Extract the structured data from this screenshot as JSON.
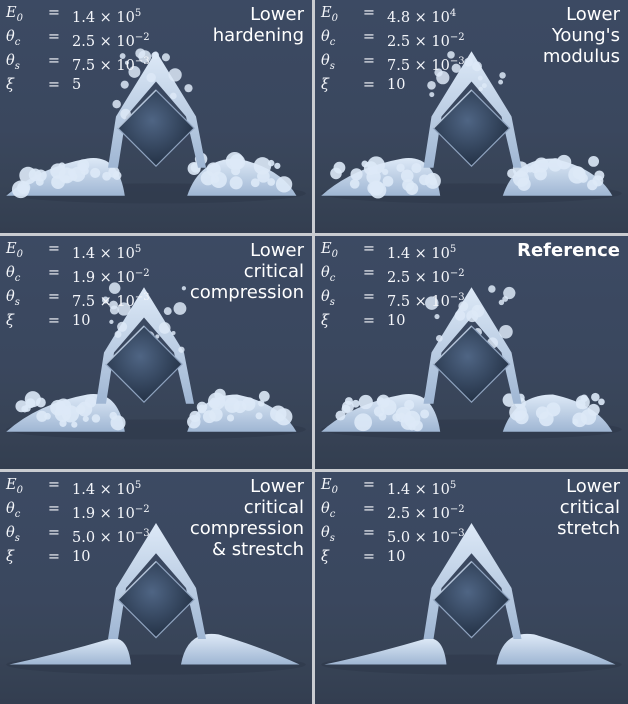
{
  "panels": [
    {
      "title": "Lower hardening",
      "title_lines": [
        "Lower",
        "hardening"
      ],
      "bold_title": false,
      "params": [
        {
          "symbol": "E",
          "sub": "0",
          "value": "1.4 × 10",
          "exp": "5"
        },
        {
          "symbol": "θ",
          "sub": "c",
          "value": "2.5 × 10",
          "exp": "−2"
        },
        {
          "symbol": "θ",
          "sub": "s",
          "value": "7.5 × 10",
          "exp": "−3"
        },
        {
          "symbol": "ξ",
          "sub": "",
          "value": "5",
          "exp": ""
        }
      ]
    },
    {
      "title": "Lower Young's modulus",
      "title_lines": [
        "Lower",
        "Young's",
        "modulus"
      ],
      "bold_title": false,
      "params": [
        {
          "symbol": "E",
          "sub": "0",
          "value": "4.8 × 10",
          "exp": "4"
        },
        {
          "symbol": "θ",
          "sub": "c",
          "value": "2.5 × 10",
          "exp": "−2"
        },
        {
          "symbol": "θ",
          "sub": "s",
          "value": "7.5 × 10",
          "exp": "−3"
        },
        {
          "symbol": "ξ",
          "sub": "",
          "value": "10",
          "exp": ""
        }
      ]
    },
    {
      "title": "Lower critical compression",
      "title_lines": [
        "Lower",
        "critical",
        "compression"
      ],
      "bold_title": false,
      "params": [
        {
          "symbol": "E",
          "sub": "0",
          "value": "1.4 × 10",
          "exp": "5"
        },
        {
          "symbol": "θ",
          "sub": "c",
          "value": "1.9 × 10",
          "exp": "−2"
        },
        {
          "symbol": "θ",
          "sub": "s",
          "value": "7.5 × 10",
          "exp": "−3"
        },
        {
          "symbol": "ξ",
          "sub": "",
          "value": "10",
          "exp": ""
        }
      ]
    },
    {
      "title": "Reference",
      "title_lines": [
        "Reference"
      ],
      "bold_title": true,
      "params": [
        {
          "symbol": "E",
          "sub": "0",
          "value": "1.4 × 10",
          "exp": "5"
        },
        {
          "symbol": "θ",
          "sub": "c",
          "value": "2.5 × 10",
          "exp": "−2"
        },
        {
          "symbol": "θ",
          "sub": "s",
          "value": "7.5 × 10",
          "exp": "−3"
        },
        {
          "symbol": "ξ",
          "sub": "",
          "value": "10",
          "exp": ""
        }
      ]
    },
    {
      "title": "Lower critical compression & strestch",
      "title_lines": [
        "Lower",
        "critical",
        "compression",
        "& strestch"
      ],
      "bold_title": false,
      "params": [
        {
          "symbol": "E",
          "sub": "0",
          "value": "1.4 × 10",
          "exp": "5"
        },
        {
          "symbol": "θ",
          "sub": "c",
          "value": "1.9 × 10",
          "exp": "−2"
        },
        {
          "symbol": "θ",
          "sub": "s",
          "value": "5.0 × 10",
          "exp": "−3"
        },
        {
          "symbol": "ξ",
          "sub": "",
          "value": "10",
          "exp": ""
        }
      ]
    },
    {
      "title": "Lower critical stretch",
      "title_lines": [
        "Lower",
        "critical",
        "stretch"
      ],
      "bold_title": false,
      "params": [
        {
          "symbol": "E",
          "sub": "0",
          "value": "1.4 × 10",
          "exp": "5"
        },
        {
          "symbol": "θ",
          "sub": "c",
          "value": "2.5 × 10",
          "exp": "−2"
        },
        {
          "symbol": "θ",
          "sub": "s",
          "value": "5.0 × 10",
          "exp": "−3"
        },
        {
          "symbol": "ξ",
          "sub": "",
          "value": "10",
          "exp": ""
        }
      ]
    }
  ],
  "colors": {
    "background": "#3b4860",
    "snow": "#dde9f7",
    "snow_shadow": "#9fb6d3",
    "cube": "#243246",
    "separator": "#c9ccd1"
  },
  "icons": [
    "snow-pile",
    "cube"
  ]
}
